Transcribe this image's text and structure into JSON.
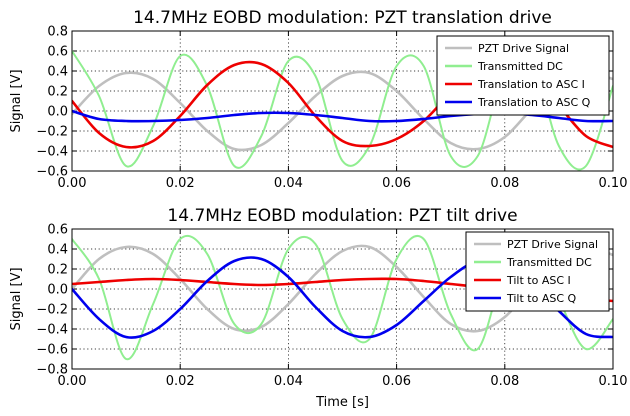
{
  "chart_data": [
    {
      "type": "line",
      "title": "14.7MHz EOBD modulation: PZT translation drive",
      "xlabel": "",
      "ylabel": "Signal [V]",
      "xlim": [
        0.0,
        0.1
      ],
      "ylim": [
        -0.6,
        0.8
      ],
      "xticks": [
        "0.00",
        "0.02",
        "0.04",
        "0.06",
        "0.08",
        "0.10"
      ],
      "yticks": [
        "−0.6",
        "−0.4",
        "−0.2",
        "0.0",
        "0.2",
        "0.4",
        "0.6",
        "0.8"
      ],
      "grid": true,
      "legend": "top-right",
      "series": [
        {
          "name": "PZT Drive Signal",
          "color": "#bfbfbf",
          "x": [
            0,
            0.005,
            0.01,
            0.015,
            0.02,
            0.025,
            0.03,
            0.035,
            0.04,
            0.045,
            0.05,
            0.055,
            0.06,
            0.065,
            0.07,
            0.075,
            0.08,
            0.085,
            0.09,
            0.095,
            0.1
          ],
          "y": [
            -0.03,
            0.25,
            0.38,
            0.32,
            0.08,
            -0.2,
            -0.38,
            -0.34,
            -0.12,
            0.15,
            0.35,
            0.38,
            0.2,
            -0.08,
            -0.32,
            -0.38,
            -0.26,
            0.02,
            0.25,
            0.38,
            0.32
          ]
        },
        {
          "name": "Transmitted DC",
          "color": "#90ee90",
          "x": [
            0,
            0.005,
            0.01,
            0.015,
            0.02,
            0.025,
            0.03,
            0.035,
            0.04,
            0.045,
            0.05,
            0.055,
            0.06,
            0.065,
            0.07,
            0.075,
            0.08,
            0.085,
            0.09,
            0.095,
            0.1
          ],
          "y": [
            0.6,
            0.15,
            -0.55,
            -0.15,
            0.55,
            0.25,
            -0.55,
            -0.25,
            0.5,
            0.35,
            -0.5,
            -0.35,
            0.45,
            0.45,
            -0.45,
            -0.45,
            0.4,
            0.5,
            -0.35,
            -0.55,
            0.25
          ]
        },
        {
          "name": "Translation to ASC I",
          "color": "#ee0000",
          "x": [
            0,
            0.005,
            0.01,
            0.015,
            0.02,
            0.025,
            0.03,
            0.035,
            0.04,
            0.045,
            0.05,
            0.055,
            0.06,
            0.065,
            0.07,
            0.075,
            0.08,
            0.085,
            0.09,
            0.095,
            0.1
          ],
          "y": [
            0.1,
            -0.22,
            -0.36,
            -0.3,
            -0.05,
            0.26,
            0.46,
            0.47,
            0.28,
            -0.05,
            -0.3,
            -0.35,
            -0.28,
            -0.1,
            0.18,
            0.42,
            0.5,
            0.32,
            0.05,
            -0.25,
            -0.36
          ]
        },
        {
          "name": "Translation to ASC Q",
          "color": "#0000ee",
          "x": [
            0,
            0.005,
            0.01,
            0.015,
            0.02,
            0.025,
            0.03,
            0.035,
            0.04,
            0.045,
            0.05,
            0.055,
            0.06,
            0.065,
            0.07,
            0.075,
            0.08,
            0.085,
            0.09,
            0.095,
            0.1
          ],
          "y": [
            0.0,
            -0.08,
            -0.1,
            -0.1,
            -0.09,
            -0.07,
            -0.04,
            -0.02,
            -0.02,
            -0.04,
            -0.07,
            -0.1,
            -0.1,
            -0.08,
            -0.05,
            -0.03,
            -0.02,
            -0.04,
            -0.07,
            -0.1,
            -0.1
          ]
        }
      ]
    },
    {
      "type": "line",
      "title": "14.7MHz EOBD modulation: PZT tilt drive",
      "xlabel": "Time [s]",
      "ylabel": "Signal [V]",
      "xlim": [
        0.0,
        0.1
      ],
      "ylim": [
        -0.8,
        0.6
      ],
      "xticks": [
        "0.00",
        "0.02",
        "0.04",
        "0.06",
        "0.08",
        "0.10"
      ],
      "yticks": [
        "−0.8",
        "−0.6",
        "−0.4",
        "−0.2",
        "0.0",
        "0.2",
        "0.4",
        "0.6"
      ],
      "grid": true,
      "legend": "top-right",
      "series": [
        {
          "name": "PZT Drive Signal",
          "color": "#bfbfbf",
          "x": [
            0,
            0.005,
            0.01,
            0.015,
            0.02,
            0.025,
            0.03,
            0.035,
            0.04,
            0.045,
            0.05,
            0.055,
            0.06,
            0.065,
            0.07,
            0.075,
            0.08,
            0.085,
            0.09,
            0.095,
            0.1
          ],
          "y": [
            0.0,
            0.3,
            0.42,
            0.35,
            0.1,
            -0.2,
            -0.4,
            -0.38,
            -0.15,
            0.15,
            0.38,
            0.42,
            0.22,
            -0.08,
            -0.35,
            -0.42,
            -0.28,
            0.02,
            0.3,
            0.42,
            0.34
          ]
        },
        {
          "name": "Transmitted DC",
          "color": "#90ee90",
          "x": [
            0,
            0.005,
            0.01,
            0.015,
            0.02,
            0.025,
            0.03,
            0.035,
            0.04,
            0.045,
            0.05,
            0.055,
            0.06,
            0.065,
            0.07,
            0.075,
            0.08,
            0.085,
            0.09,
            0.095,
            0.1
          ],
          "y": [
            0.5,
            0.1,
            -0.7,
            -0.15,
            0.5,
            0.35,
            -0.35,
            -0.35,
            0.4,
            0.45,
            -0.3,
            -0.5,
            0.3,
            0.5,
            -0.25,
            -0.6,
            0.2,
            0.5,
            -0.1,
            -0.6,
            -0.3
          ]
        },
        {
          "name": "Tilt to ASC I",
          "color": "#ee0000",
          "x": [
            0,
            0.005,
            0.01,
            0.015,
            0.02,
            0.025,
            0.03,
            0.035,
            0.04,
            0.045,
            0.05,
            0.055,
            0.06,
            0.065,
            0.07,
            0.075,
            0.08,
            0.085,
            0.09,
            0.095,
            0.1
          ],
          "y": [
            0.05,
            0.07,
            0.09,
            0.1,
            0.09,
            0.07,
            0.05,
            0.04,
            0.05,
            0.07,
            0.09,
            0.1,
            0.1,
            0.08,
            0.05,
            0.02,
            -0.02,
            -0.05,
            -0.08,
            -0.1,
            -0.12
          ]
        },
        {
          "name": "Tilt to ASC Q",
          "color": "#0000ee",
          "x": [
            0,
            0.005,
            0.01,
            0.015,
            0.02,
            0.025,
            0.03,
            0.035,
            0.04,
            0.045,
            0.05,
            0.055,
            0.06,
            0.065,
            0.07,
            0.075,
            0.08,
            0.085,
            0.09,
            0.095,
            0.1
          ],
          "y": [
            0.0,
            -0.3,
            -0.48,
            -0.42,
            -0.2,
            0.08,
            0.28,
            0.3,
            0.12,
            -0.18,
            -0.42,
            -0.48,
            -0.36,
            -0.12,
            0.12,
            0.28,
            0.25,
            0.05,
            -0.22,
            -0.45,
            -0.48
          ]
        }
      ]
    }
  ]
}
